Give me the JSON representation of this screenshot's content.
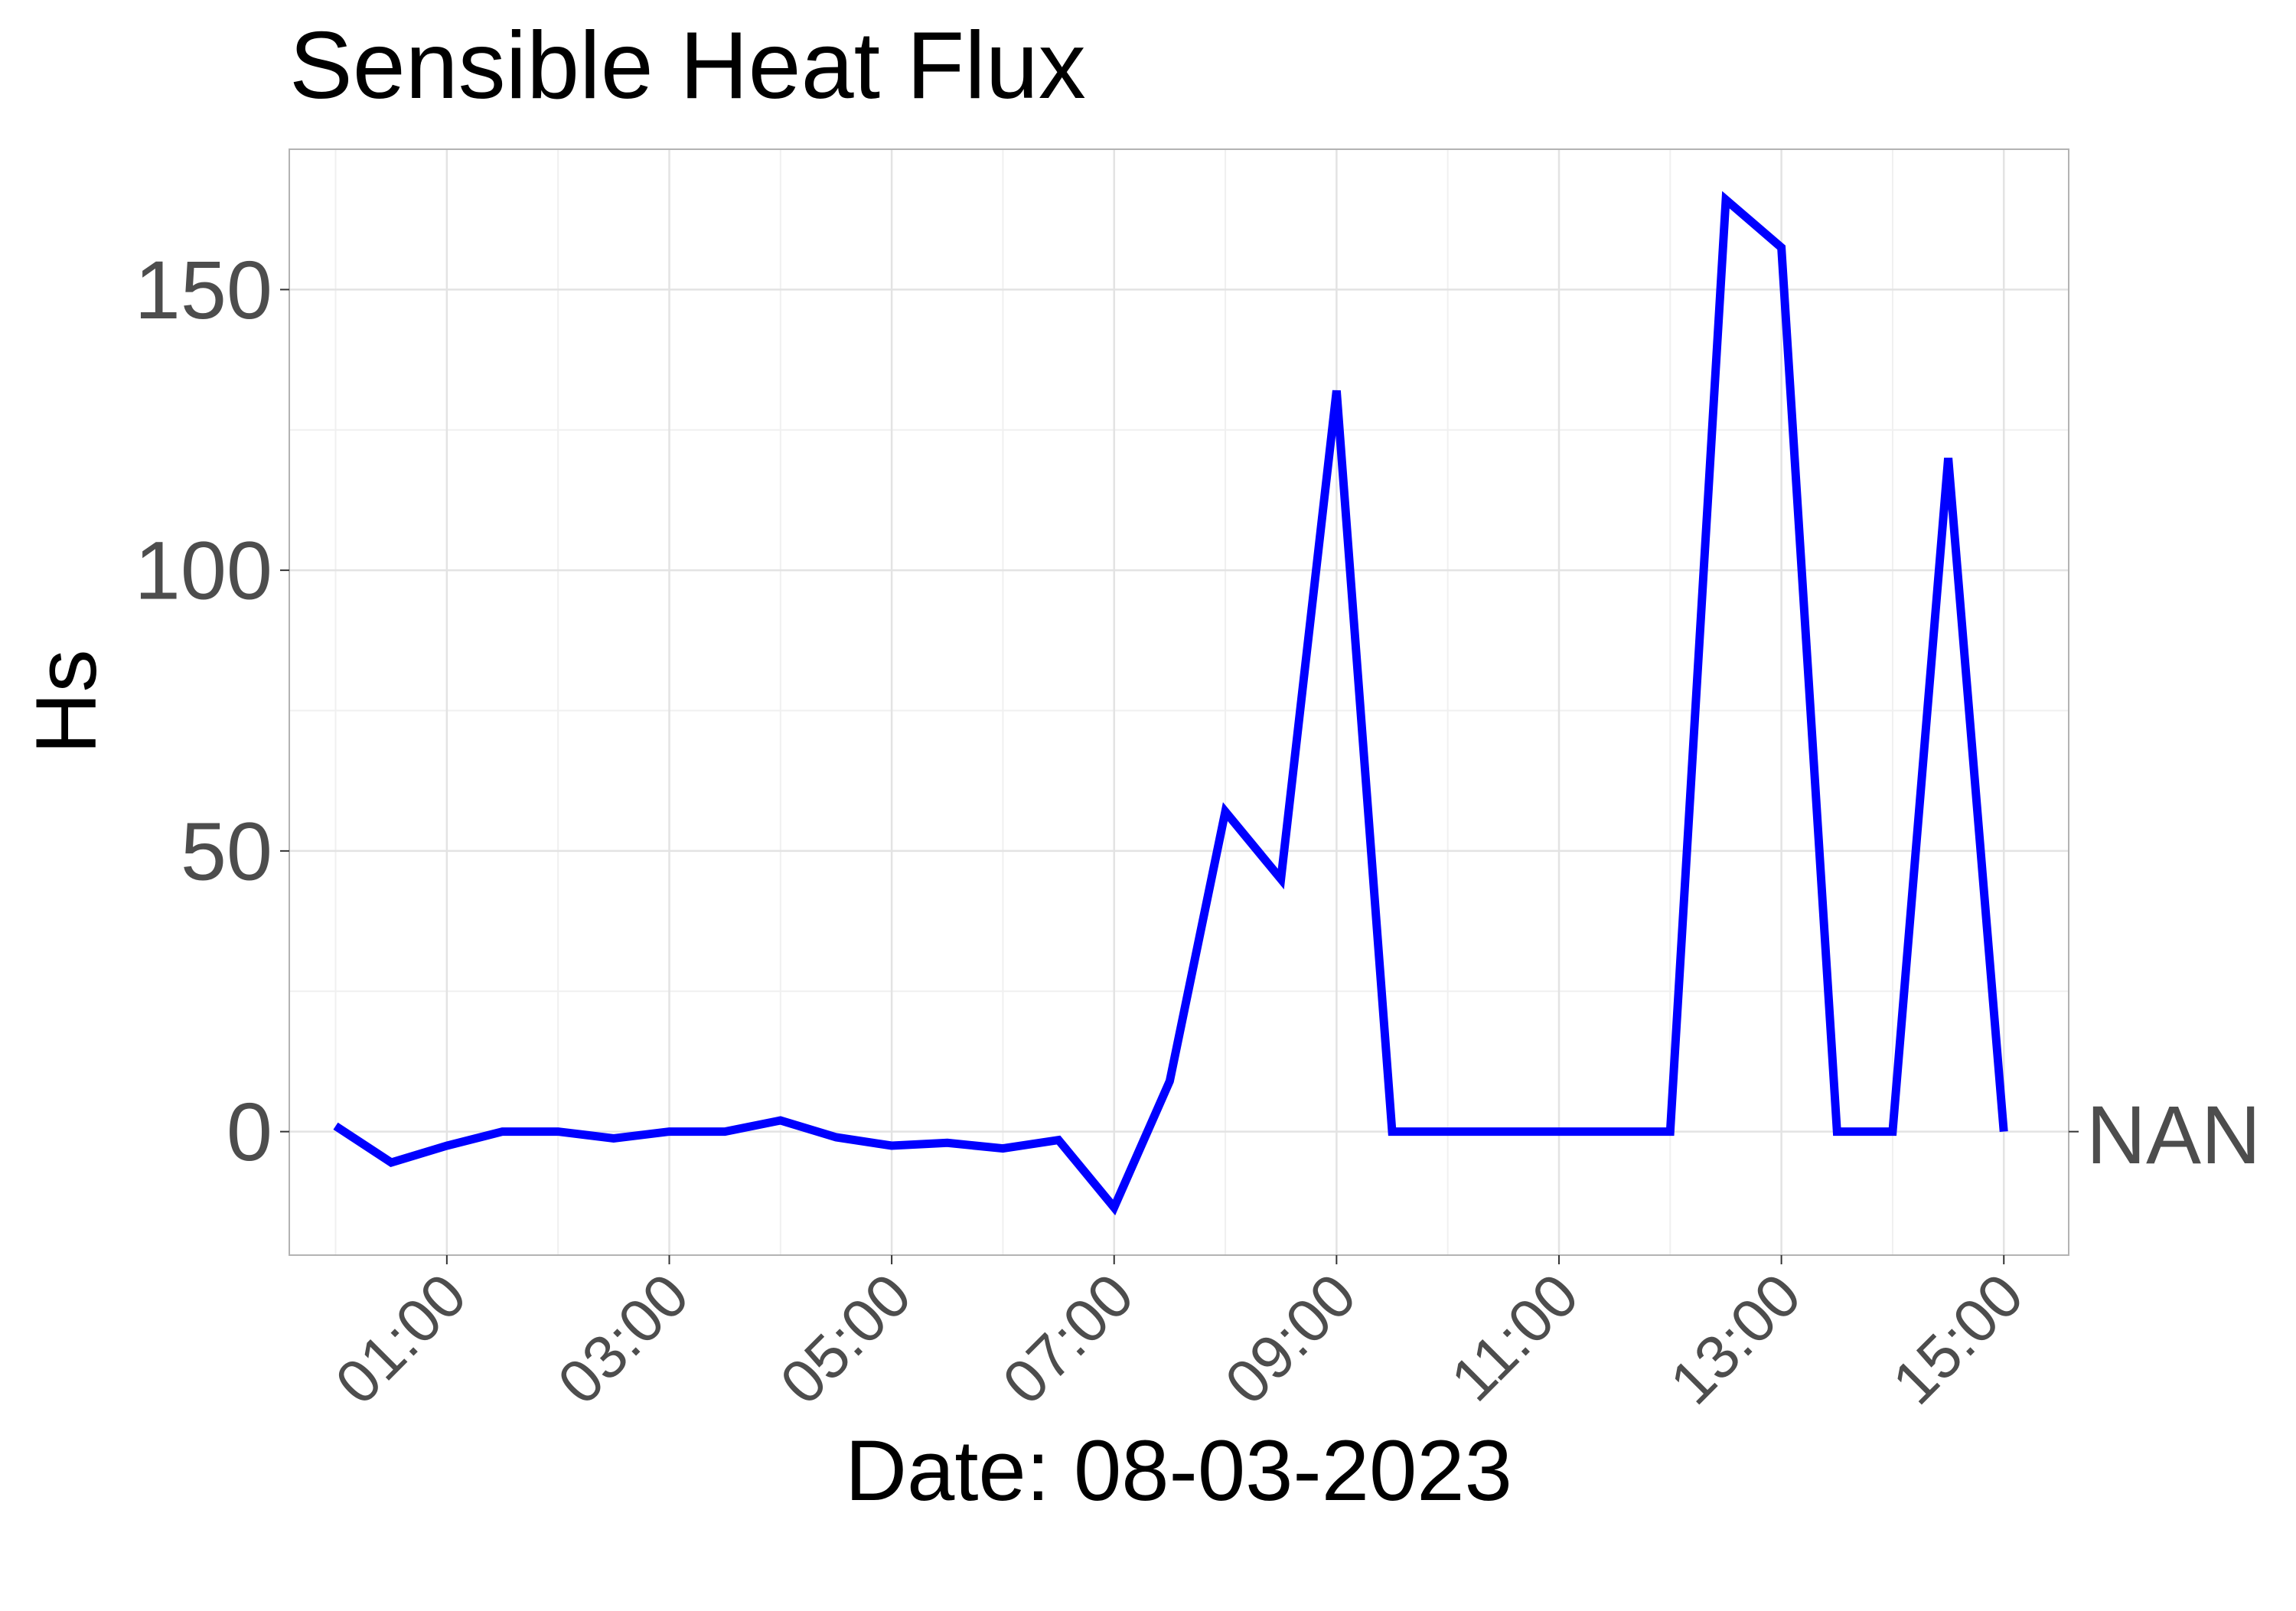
{
  "chart_data": {
    "type": "line",
    "title": "Sensible Heat Flux",
    "xlabel": "Date: 08-03-2023",
    "ylabel": "Hs",
    "x_tick_labels": [
      "01:00",
      "03:00",
      "05:00",
      "07:00",
      "09:00",
      "11:00",
      "13:00",
      "15:00"
    ],
    "x_ticks": [
      "01:00",
      "03:00",
      "05:00",
      "07:00",
      "09:00",
      "11:00",
      "13:00",
      "15:00"
    ],
    "x_range": [
      "23:35",
      "15:35"
    ],
    "y_tick_labels": [
      "0",
      "50",
      "100",
      "150"
    ],
    "y_ticks": [
      0,
      50,
      100,
      150
    ],
    "ylim": [
      -22,
      175
    ],
    "secondary_y_label": "NAN",
    "secondary_y_value": 0,
    "grid": true,
    "line_color": "#0000ff",
    "series": [
      {
        "x": [
          "00:00",
          "00:30",
          "01:00",
          "01:30",
          "02:00",
          "02:30",
          "03:00",
          "03:30",
          "04:00",
          "04:30",
          "05:00",
          "05:30",
          "06:00",
          "06:30",
          "07:00",
          "07:30",
          "08:00",
          "08:30",
          "09:00",
          "09:30",
          "10:00",
          "10:30",
          "11:00",
          "11:30",
          "12:00",
          "12:30",
          "13:00",
          "13:30",
          "14:00",
          "14:30",
          "15:00"
        ],
        "values": [
          1,
          -5.5,
          -2.5,
          0,
          0,
          -1.2,
          0,
          0,
          2,
          -1,
          -2.5,
          -2,
          -3,
          -1.5,
          -13.5,
          9,
          57,
          45,
          132,
          0,
          0,
          0,
          0,
          0,
          0,
          166,
          157.5,
          0,
          0,
          120,
          0
        ]
      }
    ]
  }
}
